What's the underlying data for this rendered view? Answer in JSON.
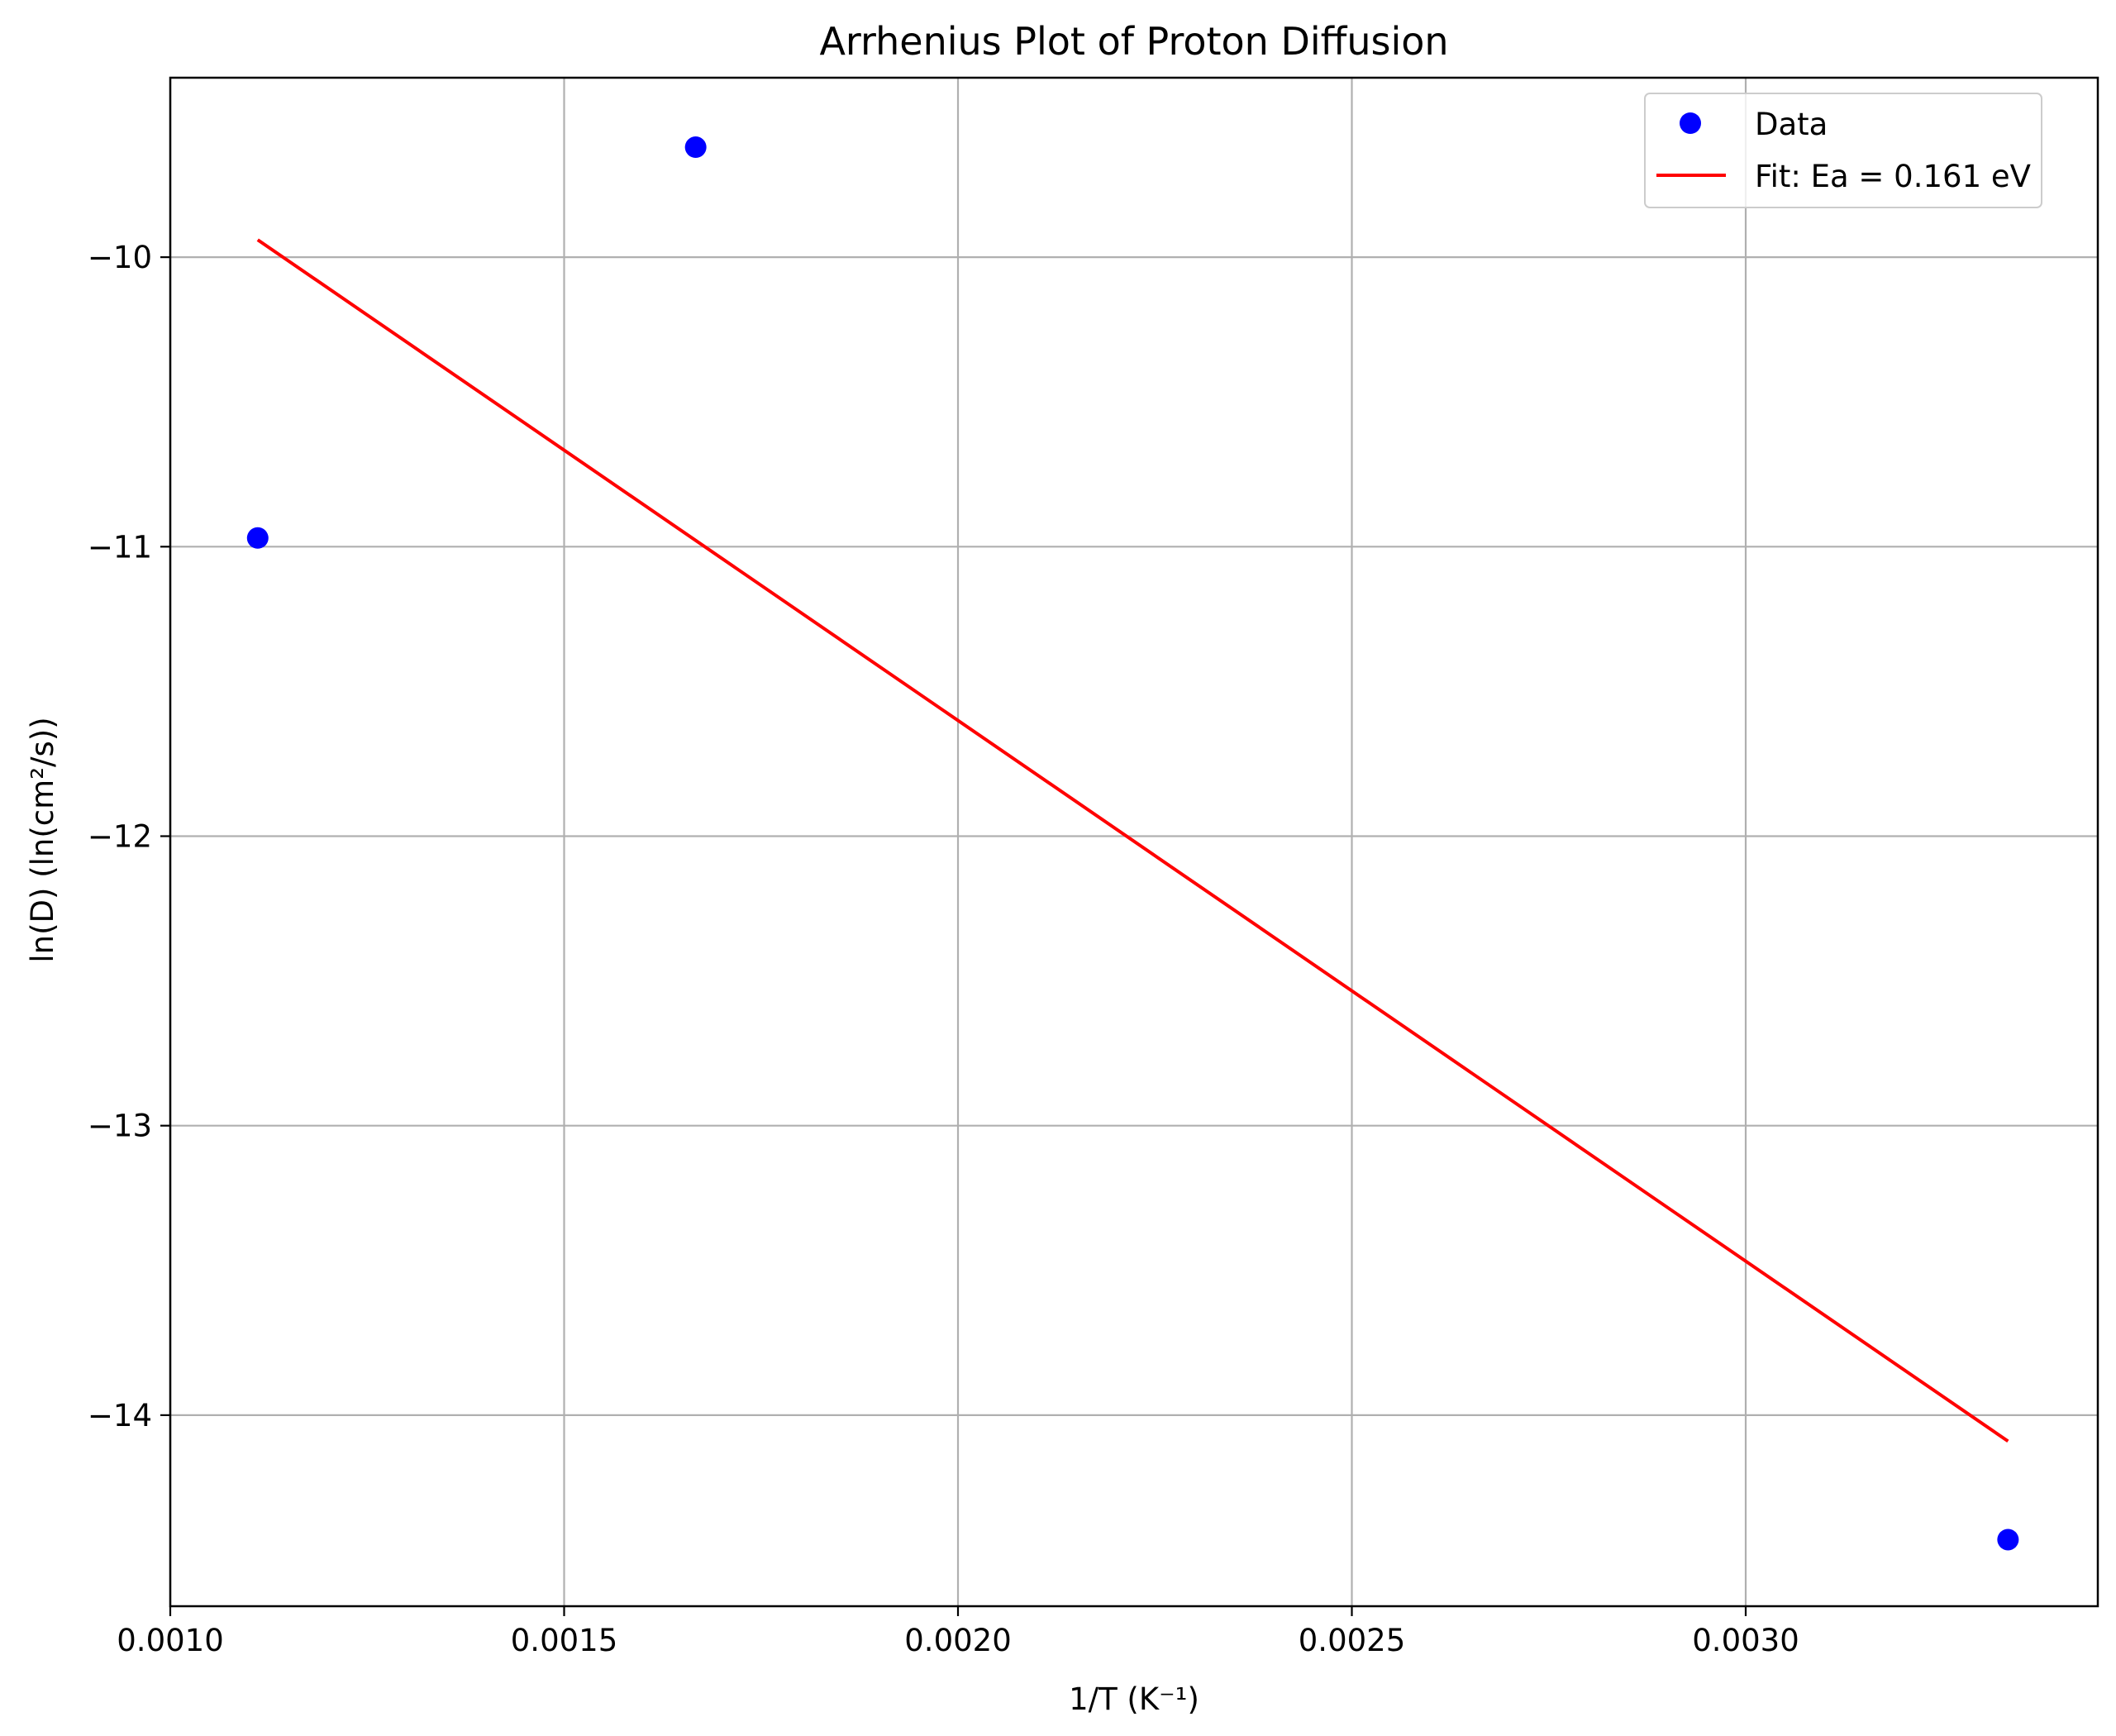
{
  "chart_data": {
    "type": "scatter",
    "title": "Arrhenius Plot of Proton Diffusion",
    "xlabel": "1/T (K⁻¹)",
    "ylabel": "ln(D) (ln(cm²/s))",
    "xlim": [
      0.001,
      0.003447
    ],
    "ylim": [
      -14.66,
      -9.38
    ],
    "xticks": [
      0.001,
      0.0015,
      0.002,
      0.0025,
      0.003
    ],
    "xtick_labels": [
      "0.0010",
      "0.0015",
      "0.0020",
      "0.0025",
      "0.0030"
    ],
    "yticks": [
      -14,
      -13,
      -12,
      -11,
      -10
    ],
    "ytick_labels": [
      "−14",
      "−13",
      "−12",
      "−11",
      "−10"
    ],
    "grid": true,
    "legend_position": "top-right",
    "series": [
      {
        "name": "Data",
        "kind": "markers",
        "color": "#0000ff",
        "x": [
          0.001111,
          0.001667,
          0.003333
        ],
        "y": [
          -10.97,
          -9.62,
          -14.43
        ]
      },
      {
        "name": "Fit: Ea = 0.161 eV",
        "kind": "line",
        "color": "#ff0000",
        "x": [
          0.001111,
          0.003333
        ],
        "y": [
          -9.94,
          -14.09
        ]
      }
    ]
  }
}
